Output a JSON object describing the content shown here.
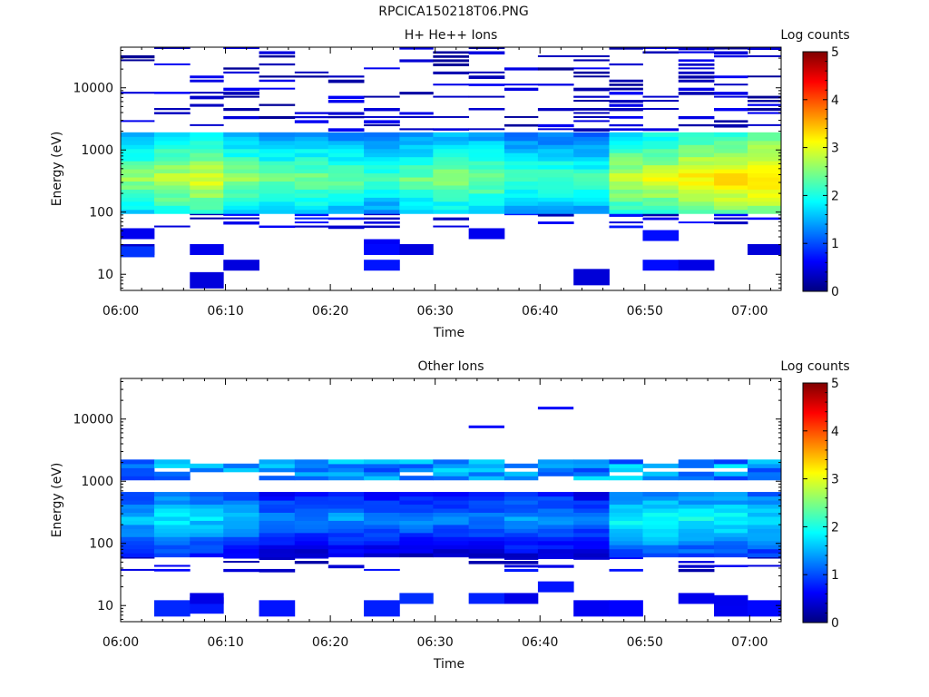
{
  "title": "RPCICA150218T06.PNG",
  "chart_data": [
    {
      "type": "heatmap",
      "title": "H+ He++ Ions",
      "xlabel": "Time",
      "ylabel": "Energy (eV)",
      "colorbar_label": "Log counts",
      "x_ticks": [
        "06:00",
        "06:10",
        "06:20",
        "06:30",
        "06:40",
        "06:50",
        "07:00"
      ],
      "xlim_minutes": [
        0,
        63
      ],
      "y_scale": "log",
      "y_ticks": [
        "10",
        "100",
        "1000",
        "10000"
      ],
      "ylim": [
        5.5,
        45000
      ],
      "zlim": [
        0,
        5
      ],
      "colorbar_ticks": [
        "0",
        "1",
        "2",
        "3",
        "4",
        "5"
      ],
      "colormap": [
        "#00007f",
        "#0000ff",
        "#007fff",
        "#00ffff",
        "#7fff7f",
        "#ffff00",
        "#ff7f00",
        "#ff0000",
        "#7f0000"
      ],
      "time_bins_minutes": [
        0,
        3.2,
        6.6,
        9.8,
        13.2,
        16.6,
        19.8,
        23.2,
        26.6,
        29.8,
        33.2,
        36.6,
        39.8,
        43.2,
        46.6,
        49.8,
        53.2,
        56.6,
        59.8,
        63
      ],
      "profile": {
        "band_low_eV": 95,
        "band_high_eV": 2000,
        "peak_eV": 350,
        "column_peaks": [
          2.6,
          2.8,
          3.0,
          2.6,
          2.4,
          2.5,
          2.4,
          2.2,
          2.4,
          2.6,
          2.5,
          2.3,
          2.3,
          2.2,
          2.9,
          3.0,
          3.2,
          3.3,
          3.4
        ],
        "low_tail": [
          {
            "col": 0,
            "eV": [
              45,
              25,
              23
            ]
          },
          {
            "col": 2,
            "eV": [
              25,
              8
            ]
          },
          {
            "col": 3,
            "eV": [
              14
            ]
          },
          {
            "col": 7,
            "eV": [
              30,
              25,
              14
            ]
          },
          {
            "col": 8,
            "eV": [
              25
            ]
          },
          {
            "col": 10,
            "eV": [
              45
            ]
          },
          {
            "col": 13,
            "eV": [
              9
            ]
          },
          {
            "col": 15,
            "eV": [
              42,
              14
            ]
          },
          {
            "col": 16,
            "eV": [
              14
            ]
          },
          {
            "col": 18,
            "eV": [
              25
            ]
          }
        ],
        "high_tail_density": 0.35
      }
    },
    {
      "type": "heatmap",
      "title": "Other Ions",
      "xlabel": "Time",
      "ylabel": "Energy (eV)",
      "colorbar_label": "Log counts",
      "x_ticks": [
        "06:00",
        "06:10",
        "06:20",
        "06:30",
        "06:40",
        "06:50",
        "07:00"
      ],
      "xlim_minutes": [
        0,
        63
      ],
      "y_scale": "log",
      "y_ticks": [
        "10",
        "100",
        "1000",
        "10000"
      ],
      "ylim": [
        5.5,
        45000
      ],
      "zlim": [
        0,
        5
      ],
      "colorbar_ticks": [
        "0",
        "1",
        "2",
        "3",
        "4",
        "5"
      ],
      "colormap": [
        "#00007f",
        "#0000ff",
        "#007fff",
        "#00ffff",
        "#7fff7f",
        "#ffff00",
        "#ff7f00",
        "#ff0000",
        "#7f0000"
      ],
      "time_bins_minutes": [
        0,
        3.2,
        6.6,
        9.8,
        13.2,
        16.6,
        19.8,
        23.2,
        26.6,
        29.8,
        33.2,
        36.6,
        39.8,
        43.2,
        46.6,
        49.8,
        53.2,
        56.6,
        59.8,
        63
      ],
      "profile": {
        "band_low_eV": 60,
        "band_high_eV": 650,
        "upper_band_low_eV": 1000,
        "upper_band_high_eV": 2200,
        "peak_eV": 250,
        "column_peaks": [
          1.6,
          1.8,
          1.7,
          1.6,
          1.3,
          1.3,
          1.4,
          1.3,
          1.3,
          1.3,
          1.3,
          1.4,
          1.4,
          1.2,
          1.9,
          2.0,
          1.9,
          1.9,
          1.8
        ],
        "low_tail": [
          {
            "col": 1,
            "eV": [
              9
            ]
          },
          {
            "col": 2,
            "eV": [
              10,
              13
            ]
          },
          {
            "col": 4,
            "eV": [
              9
            ]
          },
          {
            "col": 7,
            "eV": [
              9
            ]
          },
          {
            "col": 8,
            "eV": [
              13
            ]
          },
          {
            "col": 10,
            "eV": [
              13
            ]
          },
          {
            "col": 11,
            "eV": [
              13
            ]
          },
          {
            "col": 12,
            "eV": [
              20
            ]
          },
          {
            "col": 13,
            "eV": [
              9
            ]
          },
          {
            "col": 14,
            "eV": [
              9
            ]
          },
          {
            "col": 16,
            "eV": [
              13
            ]
          },
          {
            "col": 17,
            "eV": [
              9,
              12
            ]
          },
          {
            "col": 18,
            "eV": [
              9
            ]
          }
        ],
        "isolated": [
          {
            "col": 10,
            "eV": 7500
          },
          {
            "col": 12,
            "eV": 15000
          }
        ]
      }
    }
  ]
}
